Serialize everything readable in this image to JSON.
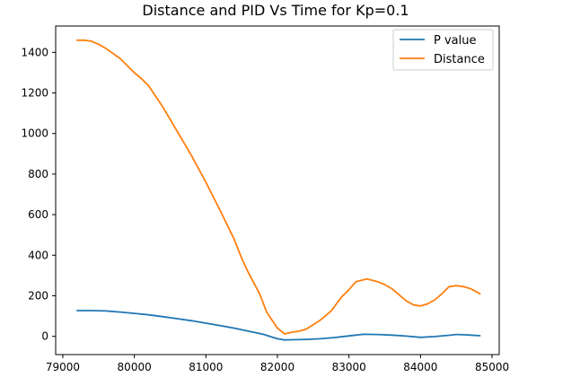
{
  "chart_data": {
    "type": "line",
    "title": "Distance and PID Vs Time for Kp=0.1",
    "xlabel": "",
    "ylabel": "",
    "xlim": [
      78900,
      85100
    ],
    "ylim": [
      -90,
      1530
    ],
    "x_ticks": [
      79000,
      80000,
      81000,
      82000,
      83000,
      84000,
      85000
    ],
    "y_ticks": [
      0,
      200,
      400,
      600,
      800,
      1000,
      1200,
      1400
    ],
    "grid": false,
    "legend_position": "top-right",
    "series": [
      {
        "name": "P value",
        "color": "#1f77b4",
        "x": [
          79200,
          79400,
          79600,
          79800,
          80000,
          80200,
          80400,
          80600,
          80800,
          81000,
          81200,
          81400,
          81600,
          81800,
          82000,
          82100,
          82200,
          82400,
          82600,
          82800,
          83000,
          83200,
          83400,
          83600,
          83800,
          84000,
          84200,
          84400,
          84500,
          84600,
          84700,
          84830
        ],
        "values": [
          127,
          127,
          125,
          120,
          113,
          106,
          97,
          87,
          77,
          65,
          53,
          40,
          25,
          10,
          -12,
          -18,
          -17,
          -15,
          -12,
          -6,
          2,
          10,
          9,
          6,
          1,
          -5,
          -1,
          5,
          9,
          8,
          6,
          3
        ]
      },
      {
        "name": "Distance",
        "color": "#ff7f0e",
        "x": [
          79200,
          79300,
          79400,
          79500,
          79600,
          79800,
          80000,
          80100,
          80200,
          80400,
          80600,
          80800,
          81000,
          81200,
          81400,
          81500,
          81600,
          81750,
          81850,
          82000,
          82100,
          82200,
          82300,
          82400,
          82600,
          82750,
          82900,
          83000,
          83100,
          83250,
          83400,
          83500,
          83600,
          83700,
          83800,
          83900,
          84000,
          84100,
          84200,
          84300,
          84400,
          84500,
          84600,
          84700,
          84830
        ],
        "values": [
          1460,
          1460,
          1455,
          1440,
          1420,
          1370,
          1300,
          1270,
          1235,
          1130,
          1010,
          890,
          760,
          620,
          475,
          385,
          310,
          210,
          120,
          40,
          12,
          20,
          25,
          35,
          80,
          125,
          195,
          230,
          270,
          283,
          270,
          255,
          235,
          205,
          175,
          155,
          150,
          160,
          180,
          210,
          245,
          250,
          245,
          235,
          210
        ]
      }
    ]
  }
}
